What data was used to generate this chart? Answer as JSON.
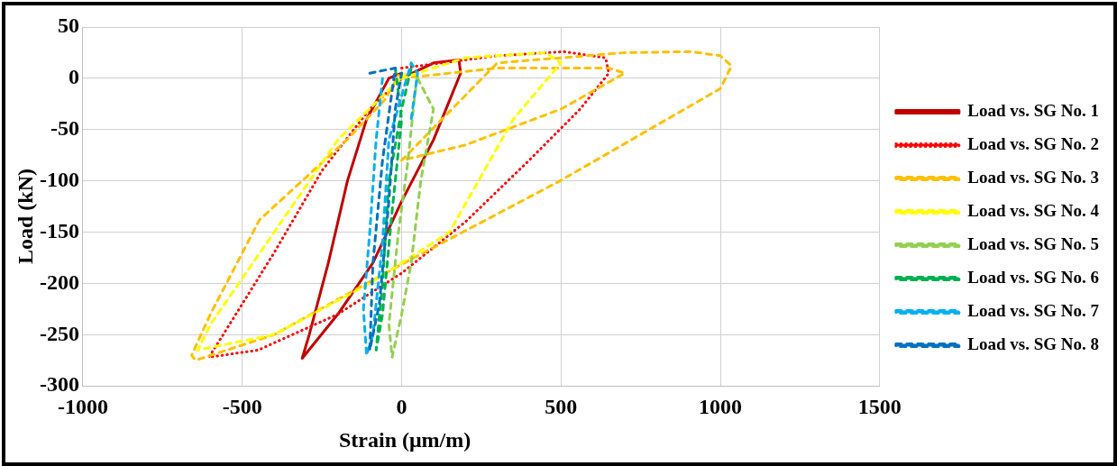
{
  "chart_data": {
    "type": "line",
    "xlabel": "Strain (μm/m)",
    "ylabel": "Load (kN)",
    "xlim": [
      -1000,
      1500
    ],
    "xticks": [
      -1000,
      -500,
      0,
      500,
      1000,
      1500
    ],
    "ylim": [
      -300,
      50
    ],
    "yticks": [
      -300,
      -250,
      -200,
      -150,
      -100,
      -50,
      0,
      50
    ],
    "grid": true,
    "legend": "right",
    "marker": "none",
    "series": [
      {
        "name": "Load vs. SG No. 1",
        "color": "#c00000",
        "line_style": "solid",
        "x": [
          0,
          100,
          180,
          185,
          100,
          0,
          -90,
          -200,
          -312,
          -290,
          -230,
          -170,
          -110,
          -40,
          0
        ],
        "values": [
          0,
          15,
          18,
          5,
          -60,
          -120,
          -180,
          -230,
          -273,
          -250,
          -180,
          -100,
          -40,
          0,
          5
        ]
      },
      {
        "name": "Load vs. SG No. 2",
        "color": "#ff0000",
        "line_style": "dotted",
        "x": [
          0,
          300,
          510,
          640,
          650,
          560,
          400,
          200,
          0,
          -200,
          -450,
          -605,
          -560,
          -400,
          -250,
          -100,
          0
        ],
        "values": [
          10,
          22,
          26,
          20,
          5,
          -30,
          -80,
          -140,
          -190,
          -230,
          -265,
          -272,
          -250,
          -170,
          -90,
          -30,
          0
        ]
      },
      {
        "name": "Load vs. SG No. 3",
        "color": "#ffc000",
        "line_style": "dashed",
        "x": [
          0,
          300,
          650,
          700,
          500,
          200,
          0,
          300,
          700,
          908,
          1000,
          1035,
          1000,
          497,
          -10,
          -400,
          -647,
          -659,
          -600,
          -446,
          -175,
          -50,
          -10
        ],
        "values": [
          0,
          10,
          10,
          5,
          -30,
          -65,
          -80,
          15,
          25,
          26,
          22,
          12,
          -10,
          -100,
          -183,
          -250,
          -275,
          -270,
          -230,
          -138,
          -61,
          -20,
          3
        ]
      },
      {
        "name": "Load vs. SG No. 4",
        "color": "#ffff00",
        "line_style": "dashed",
        "x": [
          0,
          200,
          450,
          500,
          350,
          150,
          -100,
          -400,
          -640,
          -600,
          -400,
          -200,
          10
        ],
        "values": [
          0,
          20,
          25,
          15,
          -40,
          -150,
          -200,
          -250,
          -265,
          -240,
          -150,
          -60,
          4
        ]
      },
      {
        "name": "Load vs. SG No. 5",
        "color": "#92d050",
        "line_style": "dashed",
        "x": [
          50,
          100,
          60,
          30,
          0,
          -30,
          -40,
          -10,
          20,
          40,
          50
        ],
        "values": [
          0,
          -30,
          -100,
          -180,
          -230,
          -272,
          -240,
          -150,
          -80,
          -20,
          5
        ]
      },
      {
        "name": "Load vs. SG No. 6",
        "color": "#00b050",
        "line_style": "dashed",
        "x": [
          -20,
          0,
          -30,
          -60,
          -80,
          -60,
          -40,
          0,
          30
        ],
        "values": [
          10,
          -40,
          -130,
          -230,
          -265,
          -200,
          -100,
          -30,
          10
        ]
      },
      {
        "name": "Load vs. SG No. 7",
        "color": "#00b0f0",
        "line_style": "dashed",
        "x": [
          -60,
          -80,
          -100,
          -120,
          -110,
          -90,
          -60,
          -40,
          30,
          50,
          30
        ],
        "values": [
          0,
          -60,
          -150,
          -225,
          -270,
          -250,
          -160,
          -60,
          15,
          5,
          -40
        ]
      },
      {
        "name": "Load vs. SG No. 8",
        "color": "#0070c0",
        "line_style": "dashed",
        "x": [
          -100,
          -20,
          -60,
          -90,
          -100,
          -70,
          -40,
          -20,
          0
        ],
        "values": [
          5,
          10,
          -80,
          -180,
          -265,
          -220,
          -120,
          -30,
          5
        ]
      }
    ]
  }
}
